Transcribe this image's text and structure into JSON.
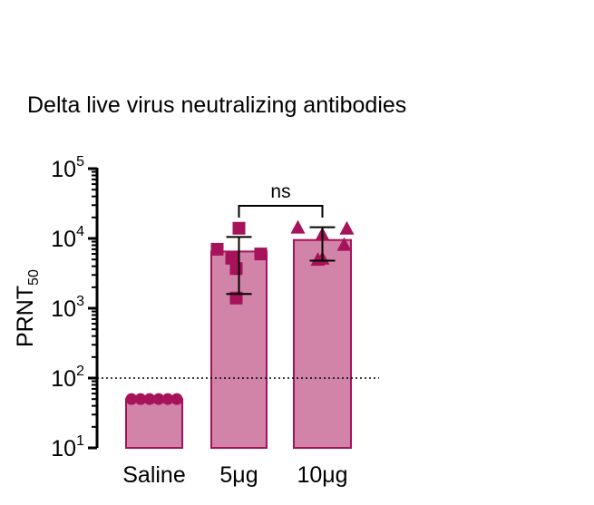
{
  "chart_data": {
    "type": "bar",
    "title": "Delta live virus neutralizing antibodies",
    "ylabel": {
      "main": "PRNT",
      "sub": "50"
    },
    "xlabel": "",
    "yscale": "log",
    "ylim": [
      10,
      100000
    ],
    "yticks": [
      {
        "base": "10",
        "exp": "1",
        "value": 10
      },
      {
        "base": "10",
        "exp": "2",
        "value": 100
      },
      {
        "base": "10",
        "exp": "3",
        "value": 1000
      },
      {
        "base": "10",
        "exp": "4",
        "value": 10000
      },
      {
        "base": "10",
        "exp": "5",
        "value": 100000
      }
    ],
    "categories": [
      "Saline",
      "5μg",
      "10μg"
    ],
    "bars": [
      {
        "category": "Saline",
        "mean": 50,
        "error": null,
        "marker": "circle",
        "points": [
          50,
          50,
          50,
          50,
          50,
          50
        ]
      },
      {
        "category": "5μg",
        "mean": 6500,
        "error": [
          1600,
          10500
        ],
        "marker": "square",
        "points": [
          14000,
          7000,
          6000,
          5200,
          3700,
          1400
        ]
      },
      {
        "category": "10μg",
        "mean": 9500,
        "error": [
          4800,
          14500
        ],
        "marker": "triangle",
        "points": [
          14500,
          14000,
          11500,
          8200,
          5000,
          5200
        ]
      }
    ],
    "reference_line": {
      "value": 100,
      "style": "dotted"
    },
    "significance": {
      "from": "5μg",
      "to": "10μg",
      "label": "ns"
    },
    "colors": {
      "fill": "#D183A8",
      "stroke": "#A6135A",
      "marker": "#A6135A",
      "axis": "#000000"
    },
    "grid": false,
    "legend": "none"
  }
}
